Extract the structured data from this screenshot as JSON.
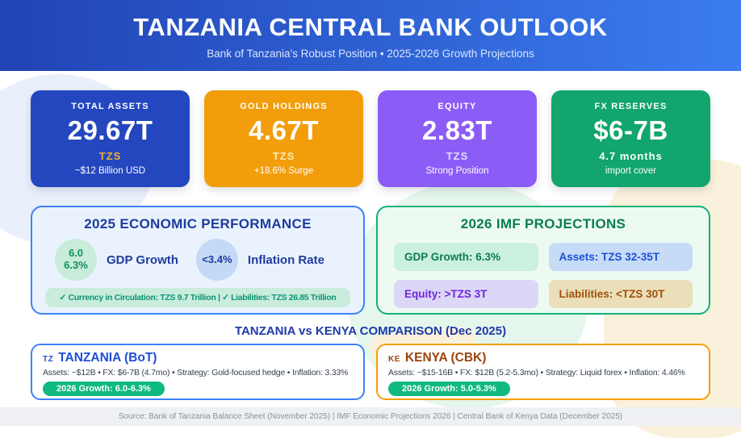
{
  "header": {
    "title": "TANZANIA CENTRAL BANK OUTLOOK",
    "subtitle": "Bank of Tanzania's Robust Position • 2025-2026 Growth Projections",
    "gradient_left": "#2143b4",
    "gradient_right": "#3b7df0"
  },
  "stat_cards": [
    {
      "label": "TOTAL ASSETS",
      "value": "29.67T",
      "line3": "TZS",
      "line4": "~$12 Billion USD",
      "bg": "#2447c0",
      "line3_color": "#f2b02c"
    },
    {
      "label": "GOLD HOLDINGS",
      "value": "4.67T",
      "line3": "TZS",
      "line4": "+18.6% Surge",
      "bg": "#f29d0c",
      "line3_color": "#fdeab5"
    },
    {
      "label": "EQUITY",
      "value": "2.83T",
      "line3": "TZS",
      "line4": "Strong Position",
      "bg": "#8b5cf6",
      "line3_color": "#e4dbfb"
    },
    {
      "label": "FX RESERVES",
      "value": "$6-7B",
      "line3": "4.7 months",
      "line4": "import cover",
      "bg": "#12a56d",
      "line3_color": "#ffffff"
    }
  ],
  "performance_panel": {
    "title": "2025 ECONOMIC PERFORMANCE",
    "title_color": "#1e3a9f",
    "border_color": "#3b82f6",
    "bg": "#eaf3fd",
    "metrics": [
      {
        "circle_line1": "6.0",
        "circle_line2": "6.3%",
        "label": "GDP Growth",
        "circle_bg": "#c8ecd9",
        "circle_color": "#12925b"
      },
      {
        "circle_line1": "<3.4%",
        "circle_line2": "",
        "label": "Inflation Rate",
        "circle_bg": "#c3d9f6",
        "circle_color": "#1e3a9f"
      }
    ],
    "footnote": "✓ Currency in Circulation: TZS 9.7 Trillion | ✓ Liabilities: TZS 26.85 Trillion",
    "footnote_bg": "#c9ecdc",
    "footnote_color": "#0c9473"
  },
  "projections_panel": {
    "title": "2026 IMF PROJECTIONS",
    "title_color": "#0a7d52",
    "border_color": "#12b176",
    "bg": "#edfaf2",
    "chips": [
      {
        "text": "GDP Growth: 6.3%",
        "bg": "#cbf0dd",
        "color": "#0a7d52"
      },
      {
        "text": "Assets: TZS 32-35T",
        "bg": "#c6dcf6",
        "color": "#1d4fd7"
      },
      {
        "text": "Equity: >TZS 3T",
        "bg": "#dcd6f7",
        "color": "#6d28d9"
      },
      {
        "text": "Liabilities: <TZS 30T",
        "bg": "#eadfb9",
        "color": "#a14e0c"
      }
    ]
  },
  "comparison": {
    "title": "TANZANIA vs KENYA COMPARISON (Dec 2025)",
    "title_color": "#1e3aa8",
    "cards": [
      {
        "code": "TZ",
        "name": "TANZANIA (BoT)",
        "details": "Assets: ~$12B • FX: $6-7B (4.7mo) • Strategy: Gold-focused hedge • Inflation: 3.33%",
        "growth": "2026 Growth: 6.0-6.3%",
        "border_color": "#3b82f6",
        "title_color": "#1d4ed8",
        "growth_bg": "#10b981"
      },
      {
        "code": "KE",
        "name": "KENYA (CBK)",
        "details": "Assets: ~$15-16B • FX: $12B (5.2-5.3mo) • Strategy: Liquid forex • Inflation: 4.46%",
        "growth": "2026 Growth: 5.0-5.3%",
        "border_color": "#f59e0b",
        "title_color": "#9a430d",
        "growth_bg": "#10b981"
      }
    ]
  },
  "footer": {
    "text": "Source: Bank of Tanzania Balance Sheet (November 2025) | IMF Economic Projections 2026 | Central Bank of Kenya Data (December 2025)"
  }
}
